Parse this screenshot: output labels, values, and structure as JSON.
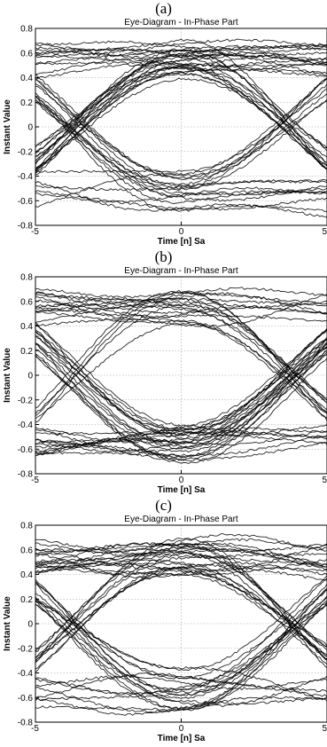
{
  "style": {
    "trace_color": "#000000",
    "grid_color": "#9a9a9a",
    "frame_color": "#000000",
    "background": "#ffffff"
  },
  "chart_data": [
    {
      "panel_label": "(a)",
      "type": "line",
      "variant": "eye-diagram",
      "title": "Eye-Diagram - In-Phase Part",
      "xlabel": "Time [n] Sa",
      "ylabel": "Instant Value",
      "xlim": [
        -5,
        5
      ],
      "ylim": [
        -0.8,
        0.8
      ],
      "xticks": [
        -5,
        0,
        5
      ],
      "xtick_labels": [
        "-5",
        "0",
        "5"
      ],
      "yticks": [
        0.8,
        0.6,
        0.4,
        0.2,
        0,
        -0.2,
        -0.4,
        -0.6,
        -0.8
      ],
      "ytick_labels": [
        "0.8",
        "0.6",
        "0.4",
        "0.2",
        "0",
        "-0.2",
        "-0.4",
        "-0.6",
        "-0.8"
      ],
      "grid": true,
      "eye": {
        "crossings_x": [
          -2.5,
          2.5
        ],
        "level_band_high": [
          0.38,
          0.72
        ],
        "level_band_low": [
          -0.72,
          -0.35
        ],
        "crossing_y": 0.0
      }
    },
    {
      "panel_label": "(b)",
      "type": "line",
      "variant": "eye-diagram",
      "title": "Eye-Diagram - In-Phase Part",
      "xlabel": "Time [n] Sa",
      "ylabel": "Instant Value",
      "xlim": [
        -5,
        5
      ],
      "ylim": [
        -0.8,
        0.8
      ],
      "xticks": [
        -5,
        0,
        5
      ],
      "xtick_labels": [
        "-5",
        "0",
        "5"
      ],
      "yticks": [
        0.8,
        0.6,
        0.4,
        0.2,
        0,
        -0.2,
        -0.4,
        -0.6,
        -0.8
      ],
      "ytick_labels": [
        "0.8",
        "0.6",
        "0.4",
        "0.2",
        "0",
        "-0.2",
        "-0.4",
        "-0.6",
        "-0.8"
      ],
      "grid": true,
      "eye": {
        "crossings_x": [
          -2.5,
          2.5
        ],
        "level_band_high": [
          0.4,
          0.72
        ],
        "level_band_low": [
          -0.72,
          -0.38
        ],
        "crossing_y": 0.0
      }
    },
    {
      "panel_label": "(c)",
      "type": "line",
      "variant": "eye-diagram",
      "title": "Eye-Diagram - In-Phase Part",
      "xlabel": "Time [n] Sa",
      "ylabel": "Instant Value",
      "xlim": [
        -5,
        5
      ],
      "ylim": [
        -0.8,
        0.8
      ],
      "xticks": [
        -5,
        0,
        5
      ],
      "xtick_labels": [
        "-5",
        "0",
        "5"
      ],
      "yticks": [
        0.8,
        0.6,
        0.4,
        0.2,
        0,
        -0.2,
        -0.4,
        -0.6,
        -0.8
      ],
      "ytick_labels": [
        "0.8",
        "0.6",
        "0.4",
        "0.2",
        "0",
        "-0.2",
        "-0.4",
        "-0.6",
        "-0.8"
      ],
      "grid": true,
      "eye": {
        "crossings_x": [
          -2.5,
          2.5
        ],
        "level_band_high": [
          0.38,
          0.72
        ],
        "level_band_low": [
          -0.72,
          -0.35
        ],
        "crossing_y": 0.0
      }
    }
  ]
}
